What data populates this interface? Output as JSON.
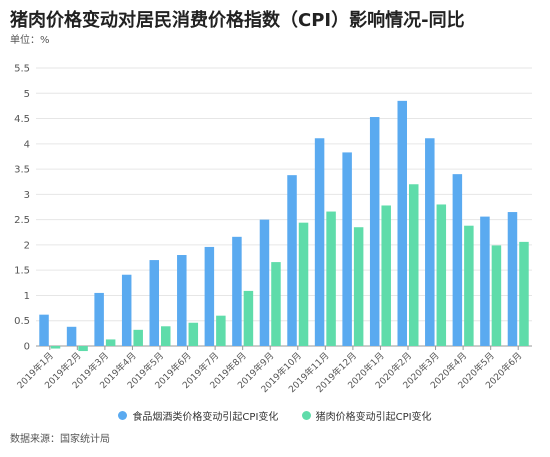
{
  "title": "猪肉价格变动对居民消费价格指数（CPI）影响情况-同比",
  "unit": "单位：%",
  "source": "数据来源：国家统计局",
  "colors": {
    "series1": "#5aaaf0",
    "series2": "#5fdcaa",
    "grid": "#e6e6e6",
    "axis": "#999999",
    "tick": "#555555"
  },
  "chart_data": {
    "type": "bar",
    "title": "猪肉价格变动对居民消费价格指数（CPI）影响情况-同比",
    "ylabel": "单位：%",
    "ylim": [
      -0.25,
      5.5
    ],
    "yticks": [
      "5.5",
      "5",
      "4.5",
      "4",
      "3.5",
      "3",
      "2.5",
      "2",
      "1.5",
      "1",
      "0.5",
      "0"
    ],
    "ytick_values": [
      5.5,
      5,
      4.5,
      4,
      3.5,
      3,
      2.5,
      2,
      1.5,
      1,
      0.5,
      0
    ],
    "grid": true,
    "legend_position": "bottom",
    "categories": [
      "2019年1月",
      "2019年2月",
      "2019年3月",
      "2019年4月",
      "2019年5月",
      "2019年6月",
      "2019年7月",
      "2019年8月",
      "2019年9月",
      "2019年10月",
      "2019年11月",
      "2019年12月",
      "2020年1月",
      "2020年2月",
      "2020年3月",
      "2020年4月",
      "2020年5月",
      "2020年6月"
    ],
    "series": [
      {
        "name": "食品烟酒类价格变动引起CPI变化",
        "values": [
          0.62,
          0.38,
          1.05,
          1.41,
          1.7,
          1.8,
          1.96,
          2.16,
          2.5,
          3.38,
          4.11,
          3.83,
          4.53,
          4.85,
          4.11,
          3.4,
          2.56,
          2.65
        ]
      },
      {
        "name": "猪肉价格变动引起CPI变化",
        "values": [
          -0.05,
          -0.1,
          0.13,
          0.32,
          0.39,
          0.46,
          0.6,
          1.09,
          1.66,
          2.44,
          2.66,
          2.35,
          2.78,
          3.2,
          2.8,
          2.38,
          1.99,
          2.06
        ]
      }
    ]
  }
}
